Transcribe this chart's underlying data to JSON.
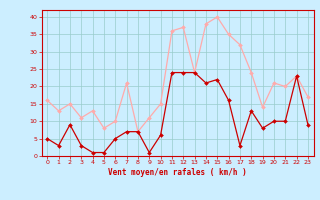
{
  "x": [
    0,
    1,
    2,
    3,
    4,
    5,
    6,
    7,
    8,
    9,
    10,
    11,
    12,
    13,
    14,
    15,
    16,
    17,
    18,
    19,
    20,
    21,
    22,
    23
  ],
  "vent_moyen": [
    5,
    3,
    9,
    3,
    1,
    1,
    5,
    7,
    7,
    1,
    6,
    24,
    24,
    24,
    21,
    22,
    16,
    3,
    13,
    8,
    10,
    10,
    23,
    9
  ],
  "rafales": [
    16,
    13,
    15,
    11,
    13,
    8,
    10,
    21,
    7,
    11,
    15,
    36,
    37,
    24,
    38,
    40,
    35,
    32,
    24,
    14,
    21,
    20,
    23,
    17
  ],
  "color_moyen": "#cc0000",
  "color_rafales": "#ffaaaa",
  "bg_color": "#cceeff",
  "grid_color": "#99cccc",
  "xlabel": "Vent moyen/en rafales ( km/h )",
  "xlabel_color": "#cc0000",
  "ylim": [
    0,
    42
  ],
  "xlim": [
    -0.5,
    23.5
  ],
  "yticks": [
    0,
    5,
    10,
    15,
    20,
    25,
    30,
    35,
    40
  ],
  "xticks": [
    0,
    1,
    2,
    3,
    4,
    5,
    6,
    7,
    8,
    9,
    10,
    11,
    12,
    13,
    14,
    15,
    16,
    17,
    18,
    19,
    20,
    21,
    22,
    23
  ]
}
